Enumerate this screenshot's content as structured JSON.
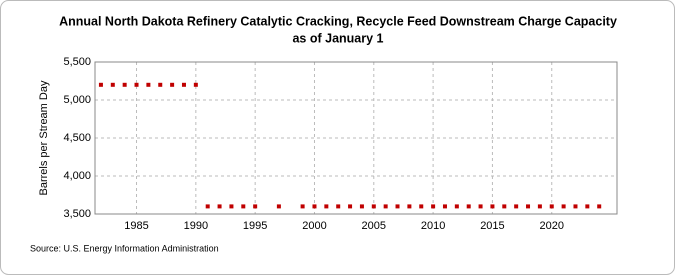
{
  "chart_data": {
    "type": "scatter",
    "title": [
      "Annual North Dakota Refinery Catalytic Cracking, Recycle Feed Downstream Charge Capacity",
      "as of January 1"
    ],
    "y_label": "Barrels per Stream Day",
    "source": "Source: U.S. Energy Information Administration",
    "x": [
      1982,
      1983,
      1984,
      1985,
      1986,
      1987,
      1988,
      1989,
      1990,
      1991,
      1992,
      1993,
      1994,
      1995,
      1997,
      1999,
      2000,
      2001,
      2002,
      2003,
      2004,
      2005,
      2006,
      2007,
      2008,
      2009,
      2010,
      2011,
      2012,
      2013,
      2014,
      2015,
      2016,
      2017,
      2018,
      2019,
      2020,
      2021,
      2022,
      2023,
      2024
    ],
    "values": [
      5200,
      5200,
      5200,
      5200,
      5200,
      5200,
      5200,
      5200,
      5200,
      3600,
      3600,
      3600,
      3600,
      3600,
      3600,
      3600,
      3600,
      3600,
      3600,
      3600,
      3600,
      3600,
      3600,
      3600,
      3600,
      3600,
      3600,
      3600,
      3600,
      3600,
      3600,
      3600,
      3600,
      3600,
      3600,
      3600,
      3600,
      3600,
      3600,
      3600,
      3600
    ],
    "color": "#c00000",
    "xlim": [
      1981.5,
      2025.5
    ],
    "xticks": [
      1985,
      1990,
      1995,
      2000,
      2005,
      2010,
      2015,
      2020
    ],
    "ylim": [
      3500,
      5500
    ],
    "yticks": [
      {
        "value": 3500,
        "label": "3,500"
      },
      {
        "value": 4000,
        "label": "4,000"
      },
      {
        "value": 4500,
        "label": "4,500"
      },
      {
        "value": 5000,
        "label": "5,000"
      },
      {
        "value": 5500,
        "label": "5,500"
      }
    ],
    "grid": true
  }
}
